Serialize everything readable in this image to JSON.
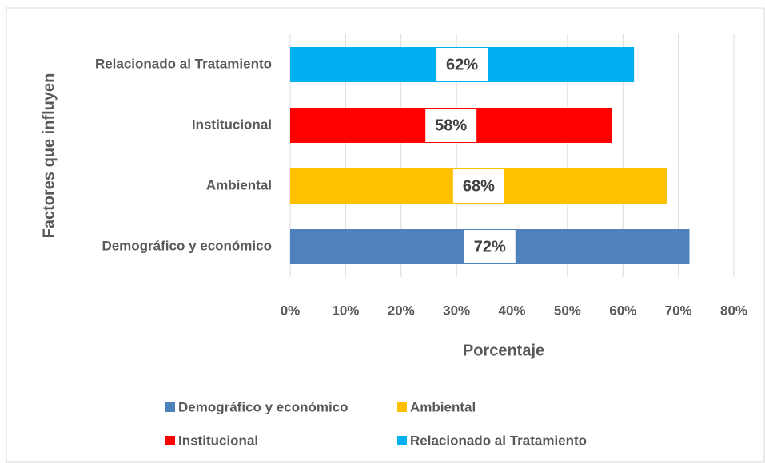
{
  "chart_data": {
    "type": "barh",
    "xlabel": "Porcentaje",
    "ylabel": "Factores que influyen",
    "categories": [
      "Demográfico y económico",
      "Ambiental",
      "Institucional",
      "Relacionado al Tratamiento"
    ],
    "values": [
      72,
      68,
      58,
      62
    ],
    "value_labels": [
      "72%",
      "68%",
      "58%",
      "62%"
    ],
    "colors": [
      "#4f81bd",
      "#ffc000",
      "#ff0000",
      "#00b0f0"
    ],
    "xlim": [
      0,
      80
    ],
    "xticks": [
      {
        "value": 0,
        "label": "0%"
      },
      {
        "value": 10,
        "label": "10%"
      },
      {
        "value": 20,
        "label": "20%"
      },
      {
        "value": 30,
        "label": "30%"
      },
      {
        "value": 40,
        "label": "40%"
      },
      {
        "value": 50,
        "label": "50%"
      },
      {
        "value": 60,
        "label": "60%"
      },
      {
        "value": 70,
        "label": "70%"
      },
      {
        "value": 80,
        "label": "80%"
      }
    ],
    "grid": true
  }
}
